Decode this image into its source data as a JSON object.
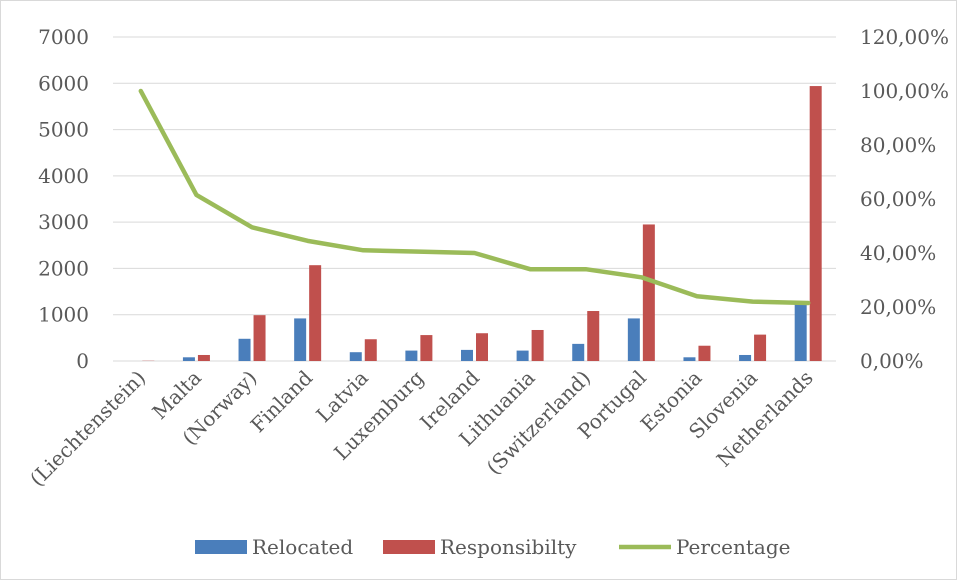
{
  "chart_data": {
    "type": "bar",
    "title": "",
    "xlabel": "",
    "ylabel": "",
    "categories": [
      "(Liechtenstein)",
      "Malta",
      "(Norway)",
      "Finland",
      "Latvia",
      "Luxemburg",
      "Ireland",
      "Lithuania",
      "(Switzerland)",
      "Portugal",
      "Estonia",
      "Slovenia",
      "Netherlands"
    ],
    "ylim": [
      0,
      7000
    ],
    "y_ticks": [
      "0",
      "1000",
      "2000",
      "3000",
      "4000",
      "5000",
      "6000",
      "7000"
    ],
    "y2lim": [
      0,
      1.2
    ],
    "y2_ticks": [
      "0,00%",
      "20,00%",
      "40,00%",
      "60,00%",
      "80,00%",
      "100,00%",
      "120,00%"
    ],
    "grid": true,
    "legend_position": "bottom",
    "series": [
      {
        "name": "Relocated",
        "type": "bar",
        "axis": "left",
        "color": "#4a7ebb",
        "values": [
          0,
          80,
          480,
          920,
          190,
          225,
          240,
          225,
          370,
          920,
          80,
          130,
          1230
        ]
      },
      {
        "name": "Responsibilty",
        "type": "bar",
        "axis": "left",
        "color": "#c0504d",
        "values": [
          5,
          130,
          990,
          2070,
          470,
          560,
          600,
          670,
          1080,
          2950,
          330,
          570,
          5940
        ]
      },
      {
        "name": "Percentage",
        "type": "line",
        "axis": "right",
        "color": "#9bbb59",
        "values": [
          1.0,
          0.615,
          0.495,
          0.445,
          0.41,
          0.405,
          0.4,
          0.34,
          0.34,
          0.31,
          0.24,
          0.22,
          0.215
        ]
      }
    ]
  }
}
